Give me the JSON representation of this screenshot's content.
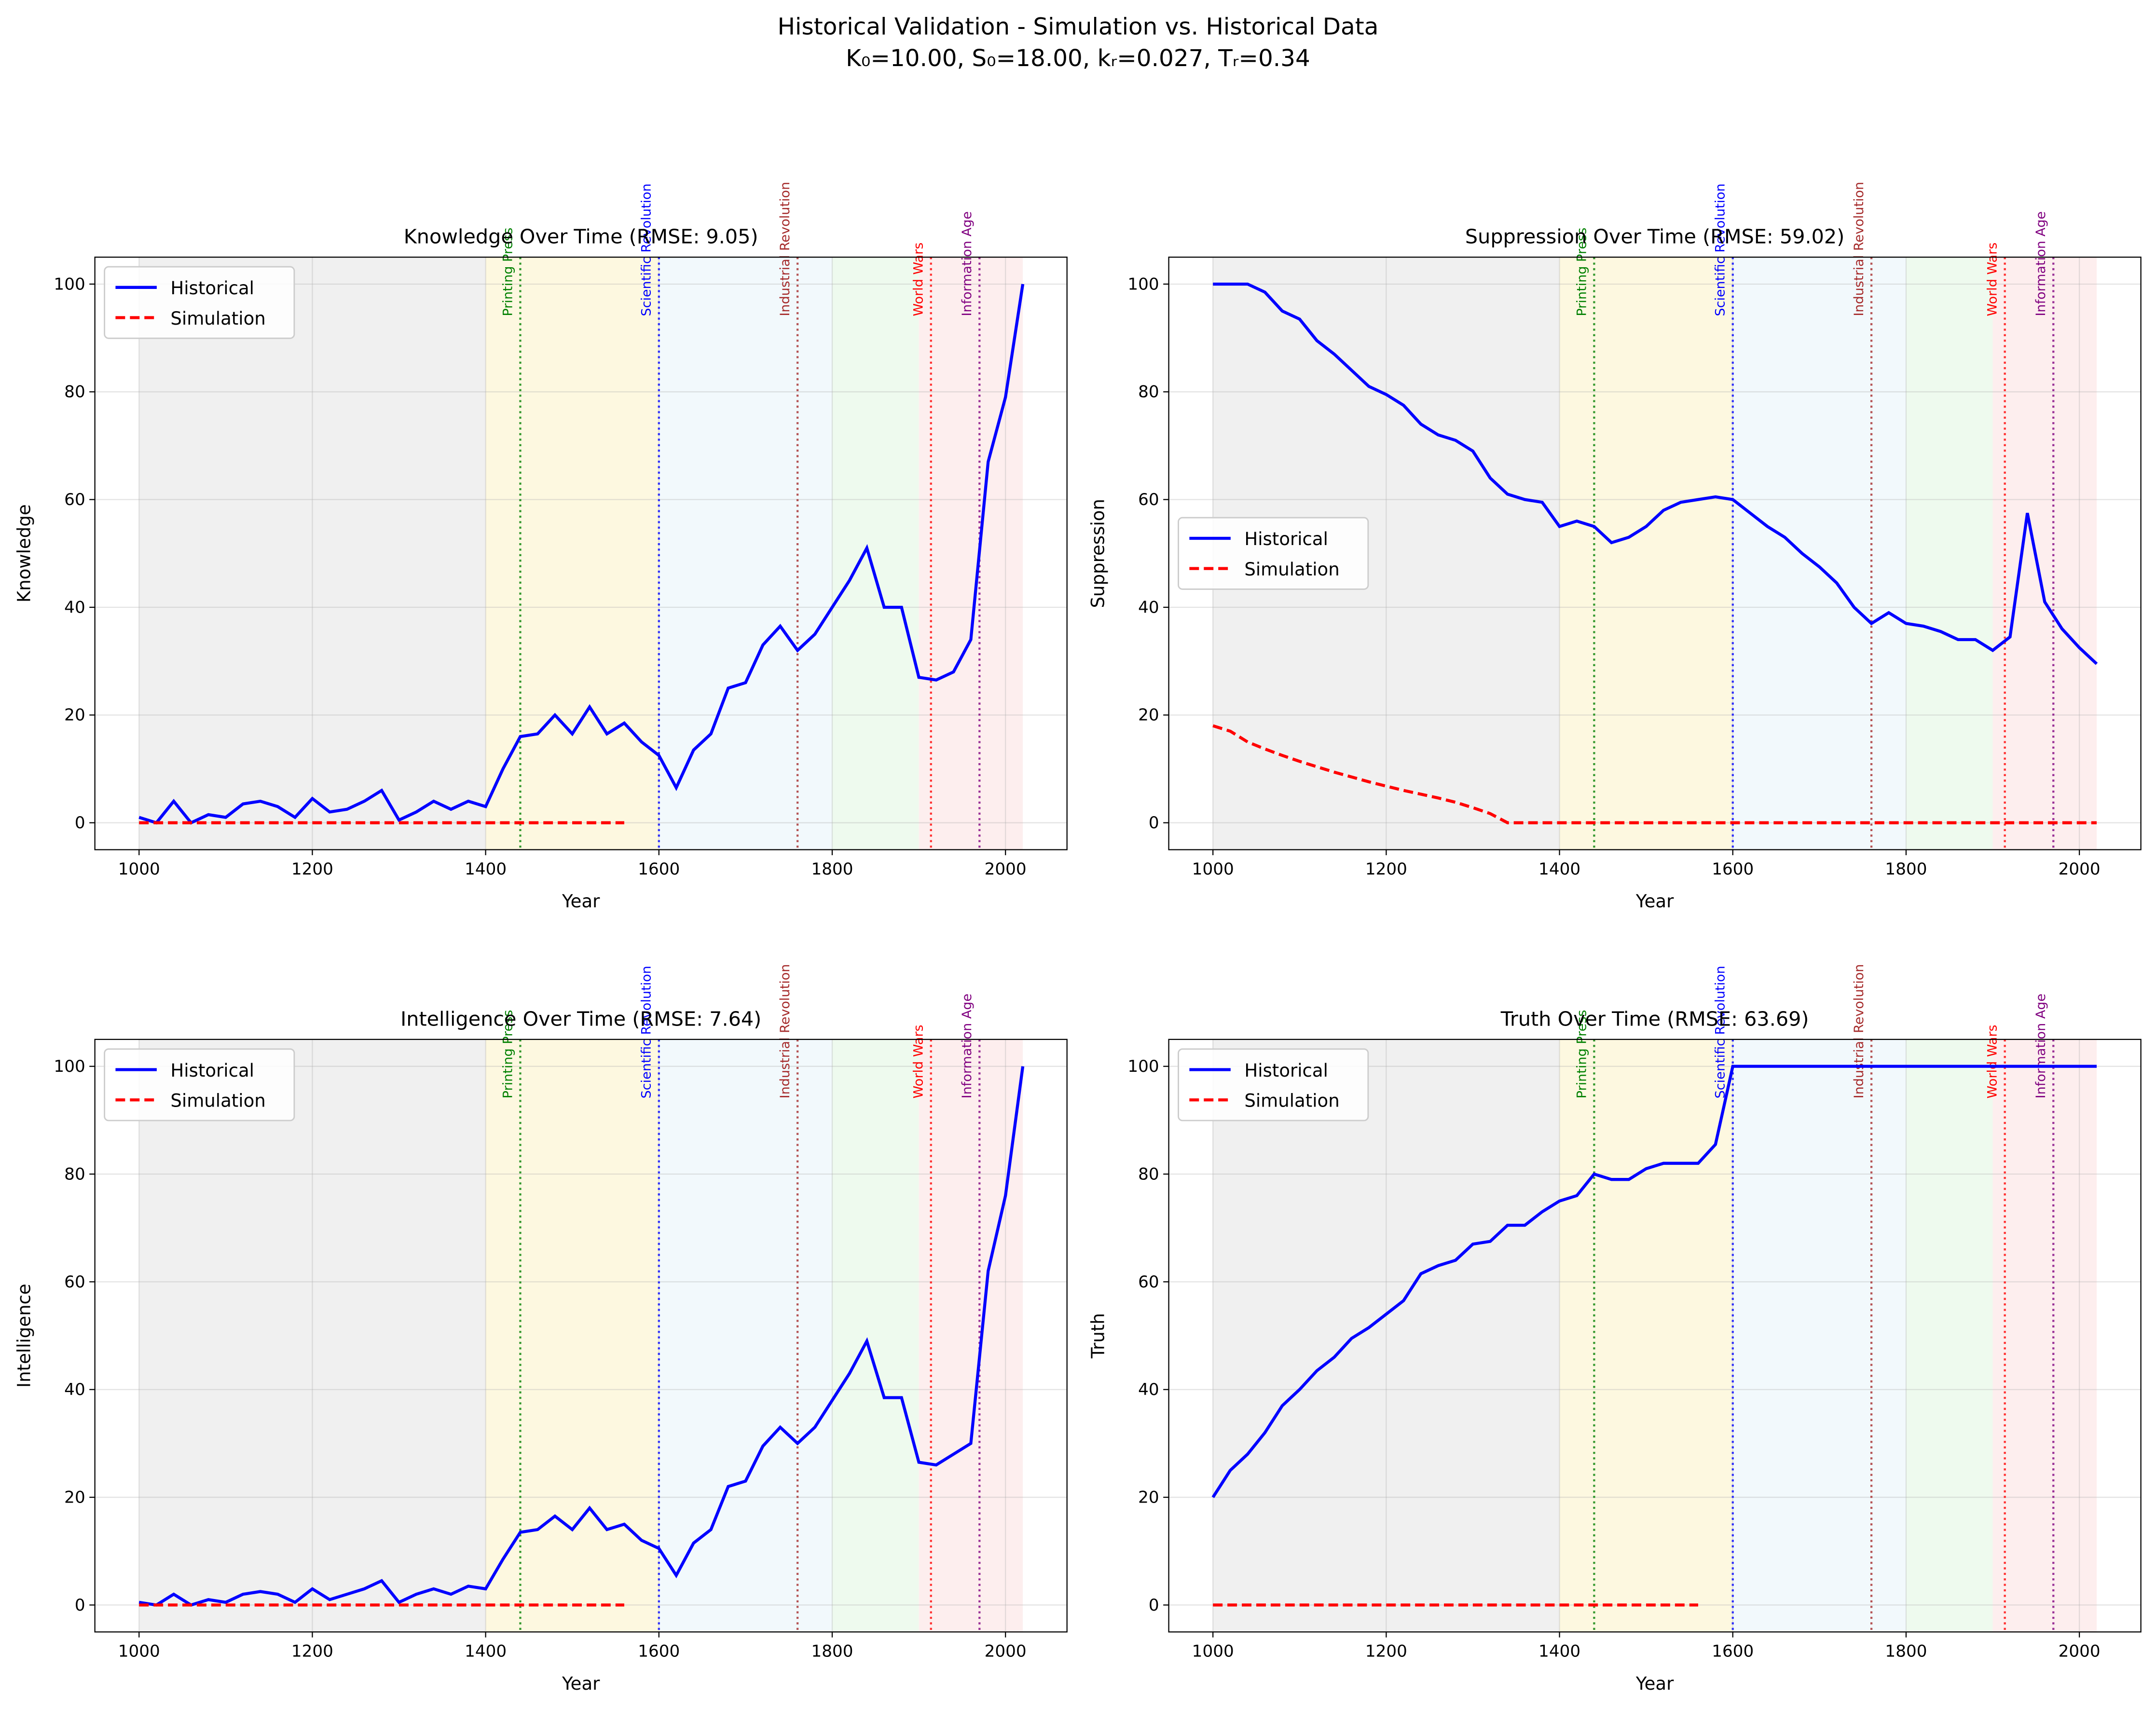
{
  "title": "Historical Validation - Simulation vs. Historical Data",
  "subtitle": "K₀=10.00, S₀=18.00, kᵣ=0.027, Tᵣ=0.34",
  "events": [
    {
      "name": "Printing Press",
      "year": 1440,
      "color": "#008000"
    },
    {
      "name": "Scientific Revolution",
      "year": 1600,
      "color": "#0000ff"
    },
    {
      "name": "Industrial Revolution",
      "year": 1760,
      "color": "#a52a2a"
    },
    {
      "name": "World Wars",
      "year": 1914,
      "color": "#ff0000"
    },
    {
      "name": "Information Age",
      "year": 1970,
      "color": "#800080"
    }
  ],
  "eras": [
    {
      "range": [
        1000,
        1400
      ],
      "color": "#f0f0f0"
    },
    {
      "range": [
        1400,
        1600
      ],
      "color": "#fdf8e0"
    },
    {
      "range": [
        1600,
        1800
      ],
      "color": "#f2f9fc"
    },
    {
      "range": [
        1800,
        1900
      ],
      "color": "#eefaee"
    },
    {
      "range": [
        1900,
        2020
      ],
      "color": "#fdeeee"
    }
  ],
  "chart_data": [
    {
      "type": "line",
      "title": "Knowledge Over Time (RMSE: 9.05)",
      "xlabel": "Year",
      "ylabel": "Knowledge",
      "legend": "upper left",
      "grid": true,
      "x": [
        1000,
        1020,
        1040,
        1060,
        1080,
        1100,
        1120,
        1140,
        1160,
        1180,
        1200,
        1220,
        1240,
        1260,
        1280,
        1300,
        1320,
        1340,
        1360,
        1380,
        1400,
        1420,
        1440,
        1460,
        1480,
        1500,
        1520,
        1540,
        1560,
        1580,
        1600,
        1620,
        1640,
        1660,
        1680,
        1700,
        1720,
        1740,
        1760,
        1780,
        1800,
        1820,
        1840,
        1860,
        1880,
        1900,
        1920,
        1940,
        1960,
        1980,
        2000,
        2020
      ],
      "xlim": [
        949,
        2071
      ],
      "xticks": [
        1000,
        1200,
        1400,
        1600,
        1800,
        2000
      ],
      "ylim": [
        -5,
        105
      ],
      "yticks": [
        0,
        20,
        40,
        60,
        80,
        100
      ],
      "series": [
        {
          "name": "Historical",
          "color": "#0000ff",
          "style": "solid",
          "values": [
            1,
            0,
            4,
            0,
            1.5,
            1,
            3.5,
            4,
            3,
            1,
            4.5,
            2,
            2.5,
            4,
            6,
            0.5,
            2,
            4,
            2.5,
            4,
            3,
            10,
            16,
            16.5,
            20,
            16.5,
            21.5,
            16.5,
            18.5,
            15,
            12.5,
            6.5,
            13.5,
            16.5,
            25,
            26,
            33,
            36.5,
            32,
            35,
            40,
            45,
            51,
            40,
            40,
            27,
            26.5,
            28,
            34,
            67,
            79,
            100
          ]
        },
        {
          "name": "Simulation",
          "color": "#ff0000",
          "style": "dashed",
          "values": [
            0,
            0,
            0,
            0,
            0,
            0,
            0,
            0,
            0,
            0,
            0,
            0,
            0,
            0,
            0,
            0,
            0,
            0,
            0,
            0,
            0,
            0,
            0,
            0,
            0,
            0,
            0,
            0,
            0,
            null,
            null,
            null,
            null,
            null,
            null,
            null,
            null,
            null,
            null,
            null,
            null,
            null,
            null,
            null,
            null,
            null,
            null,
            null,
            null,
            null,
            null,
            null
          ]
        }
      ]
    },
    {
      "type": "line",
      "title": "Suppression Over Time (RMSE: 59.02)",
      "xlabel": "Year",
      "ylabel": "Suppression",
      "legend": "center left",
      "grid": true,
      "x": [
        1000,
        1020,
        1040,
        1060,
        1080,
        1100,
        1120,
        1140,
        1160,
        1180,
        1200,
        1220,
        1240,
        1260,
        1280,
        1300,
        1320,
        1340,
        1360,
        1380,
        1400,
        1420,
        1440,
        1460,
        1480,
        1500,
        1520,
        1540,
        1560,
        1580,
        1600,
        1620,
        1640,
        1660,
        1680,
        1700,
        1720,
        1740,
        1760,
        1780,
        1800,
        1820,
        1840,
        1860,
        1880,
        1900,
        1920,
        1940,
        1960,
        1980,
        2000,
        2020
      ],
      "xlim": [
        949,
        2071
      ],
      "xticks": [
        1000,
        1200,
        1400,
        1600,
        1800,
        2000
      ],
      "ylim": [
        -5,
        105
      ],
      "yticks": [
        0,
        20,
        40,
        60,
        80,
        100
      ],
      "series": [
        {
          "name": "Historical",
          "color": "#0000ff",
          "style": "solid",
          "values": [
            100,
            100,
            100,
            98.5,
            95,
            93.5,
            89.5,
            87,
            84,
            81,
            79.5,
            77.5,
            74,
            72,
            71,
            69,
            64,
            61,
            60,
            59.5,
            55,
            56,
            55,
            52,
            53,
            55,
            58,
            59.5,
            60,
            60.5,
            60,
            57.5,
            55,
            53,
            50,
            47.5,
            44.5,
            40,
            37,
            39,
            37,
            36.5,
            35.5,
            34,
            34,
            32,
            34.5,
            57.5,
            41,
            36,
            32.5,
            29.5
          ]
        },
        {
          "name": "Simulation",
          "color": "#ff0000",
          "style": "dashed",
          "values": [
            18,
            17,
            15,
            13.7,
            12.5,
            11.4,
            10.4,
            9.4,
            8.5,
            7.6,
            6.8,
            6,
            5.3,
            4.6,
            3.8,
            2.8,
            1.7,
            0,
            0,
            0,
            0,
            0,
            0,
            0,
            0,
            0,
            0,
            0,
            0,
            0,
            0,
            0,
            0,
            0,
            0,
            0,
            0,
            0,
            0,
            0,
            0,
            0,
            0,
            0,
            0,
            0,
            0,
            0,
            0,
            0,
            0,
            0
          ]
        }
      ]
    },
    {
      "type": "line",
      "title": "Intelligence Over Time (RMSE: 7.64)",
      "xlabel": "Year",
      "ylabel": "Intelligence",
      "legend": "upper left",
      "grid": true,
      "x": [
        1000,
        1020,
        1040,
        1060,
        1080,
        1100,
        1120,
        1140,
        1160,
        1180,
        1200,
        1220,
        1240,
        1260,
        1280,
        1300,
        1320,
        1340,
        1360,
        1380,
        1400,
        1420,
        1440,
        1460,
        1480,
        1500,
        1520,
        1540,
        1560,
        1580,
        1600,
        1620,
        1640,
        1660,
        1680,
        1700,
        1720,
        1740,
        1760,
        1780,
        1800,
        1820,
        1840,
        1860,
        1880,
        1900,
        1920,
        1940,
        1960,
        1980,
        2000,
        2020
      ],
      "xlim": [
        949,
        2071
      ],
      "xticks": [
        1000,
        1200,
        1400,
        1600,
        1800,
        2000
      ],
      "ylim": [
        -5,
        105
      ],
      "yticks": [
        0,
        20,
        40,
        60,
        80,
        100
      ],
      "series": [
        {
          "name": "Historical",
          "color": "#0000ff",
          "style": "solid",
          "values": [
            0.5,
            0,
            2,
            0,
            1,
            0.5,
            2,
            2.5,
            2,
            0.5,
            3,
            1,
            2,
            3,
            4.5,
            0.5,
            2,
            3,
            2,
            3.5,
            3,
            8.5,
            13.5,
            14,
            16.5,
            14,
            18,
            14,
            15,
            12,
            10.5,
            5.5,
            11.5,
            14,
            22,
            23,
            29.5,
            33,
            30,
            33,
            38,
            43,
            49,
            38.5,
            38.5,
            26.5,
            26,
            28,
            30,
            62,
            76,
            100
          ]
        },
        {
          "name": "Simulation",
          "color": "#ff0000",
          "style": "dashed",
          "values": [
            0,
            0,
            0,
            0,
            0,
            0,
            0,
            0,
            0,
            0,
            0,
            0,
            0,
            0,
            0,
            0,
            0,
            0,
            0,
            0,
            0,
            0,
            0,
            0,
            0,
            0,
            0,
            0,
            0,
            null,
            null,
            null,
            null,
            null,
            null,
            null,
            null,
            null,
            null,
            null,
            null,
            null,
            null,
            null,
            null,
            null,
            null,
            null,
            null,
            null,
            null,
            null
          ]
        }
      ]
    },
    {
      "type": "line",
      "title": "Truth Over Time (RMSE: 63.69)",
      "xlabel": "Year",
      "ylabel": "Truth",
      "legend": "upper left",
      "grid": true,
      "x": [
        1000,
        1020,
        1040,
        1060,
        1080,
        1100,
        1120,
        1140,
        1160,
        1180,
        1200,
        1220,
        1240,
        1260,
        1280,
        1300,
        1320,
        1340,
        1360,
        1380,
        1400,
        1420,
        1440,
        1460,
        1480,
        1500,
        1520,
        1540,
        1560,
        1580,
        1600,
        1620,
        1640,
        1660,
        1680,
        1700,
        1720,
        1740,
        1760,
        1780,
        1800,
        1820,
        1840,
        1860,
        1880,
        1900,
        1920,
        1940,
        1960,
        1980,
        2000,
        2020
      ],
      "xlim": [
        949,
        2071
      ],
      "xticks": [
        1000,
        1200,
        1400,
        1600,
        1800,
        2000
      ],
      "ylim": [
        -5,
        105
      ],
      "yticks": [
        0,
        20,
        40,
        60,
        80,
        100
      ],
      "series": [
        {
          "name": "Historical",
          "color": "#0000ff",
          "style": "solid",
          "values": [
            20,
            25,
            28,
            32,
            37,
            40,
            43.5,
            46,
            49.5,
            51.5,
            54,
            56.5,
            61.5,
            63,
            64,
            67,
            67.5,
            70.5,
            70.5,
            73,
            75,
            76,
            80,
            79,
            79,
            81,
            82,
            82,
            82,
            85.5,
            100,
            100,
            100,
            100,
            100,
            100,
            100,
            100,
            100,
            100,
            100,
            100,
            100,
            100,
            100,
            100,
            100,
            100,
            100,
            100,
            100,
            100
          ]
        },
        {
          "name": "Simulation",
          "color": "#ff0000",
          "style": "dashed",
          "values": [
            0,
            0,
            0,
            0,
            0,
            0,
            0,
            0,
            0,
            0,
            0,
            0,
            0,
            0,
            0,
            0,
            0,
            0,
            0,
            0,
            0,
            0,
            0,
            0,
            0,
            0,
            0,
            0,
            0,
            null,
            null,
            null,
            null,
            null,
            null,
            null,
            null,
            null,
            null,
            null,
            null,
            null,
            null,
            null,
            null,
            null,
            null,
            null,
            null,
            null,
            null,
            null
          ]
        }
      ]
    }
  ]
}
